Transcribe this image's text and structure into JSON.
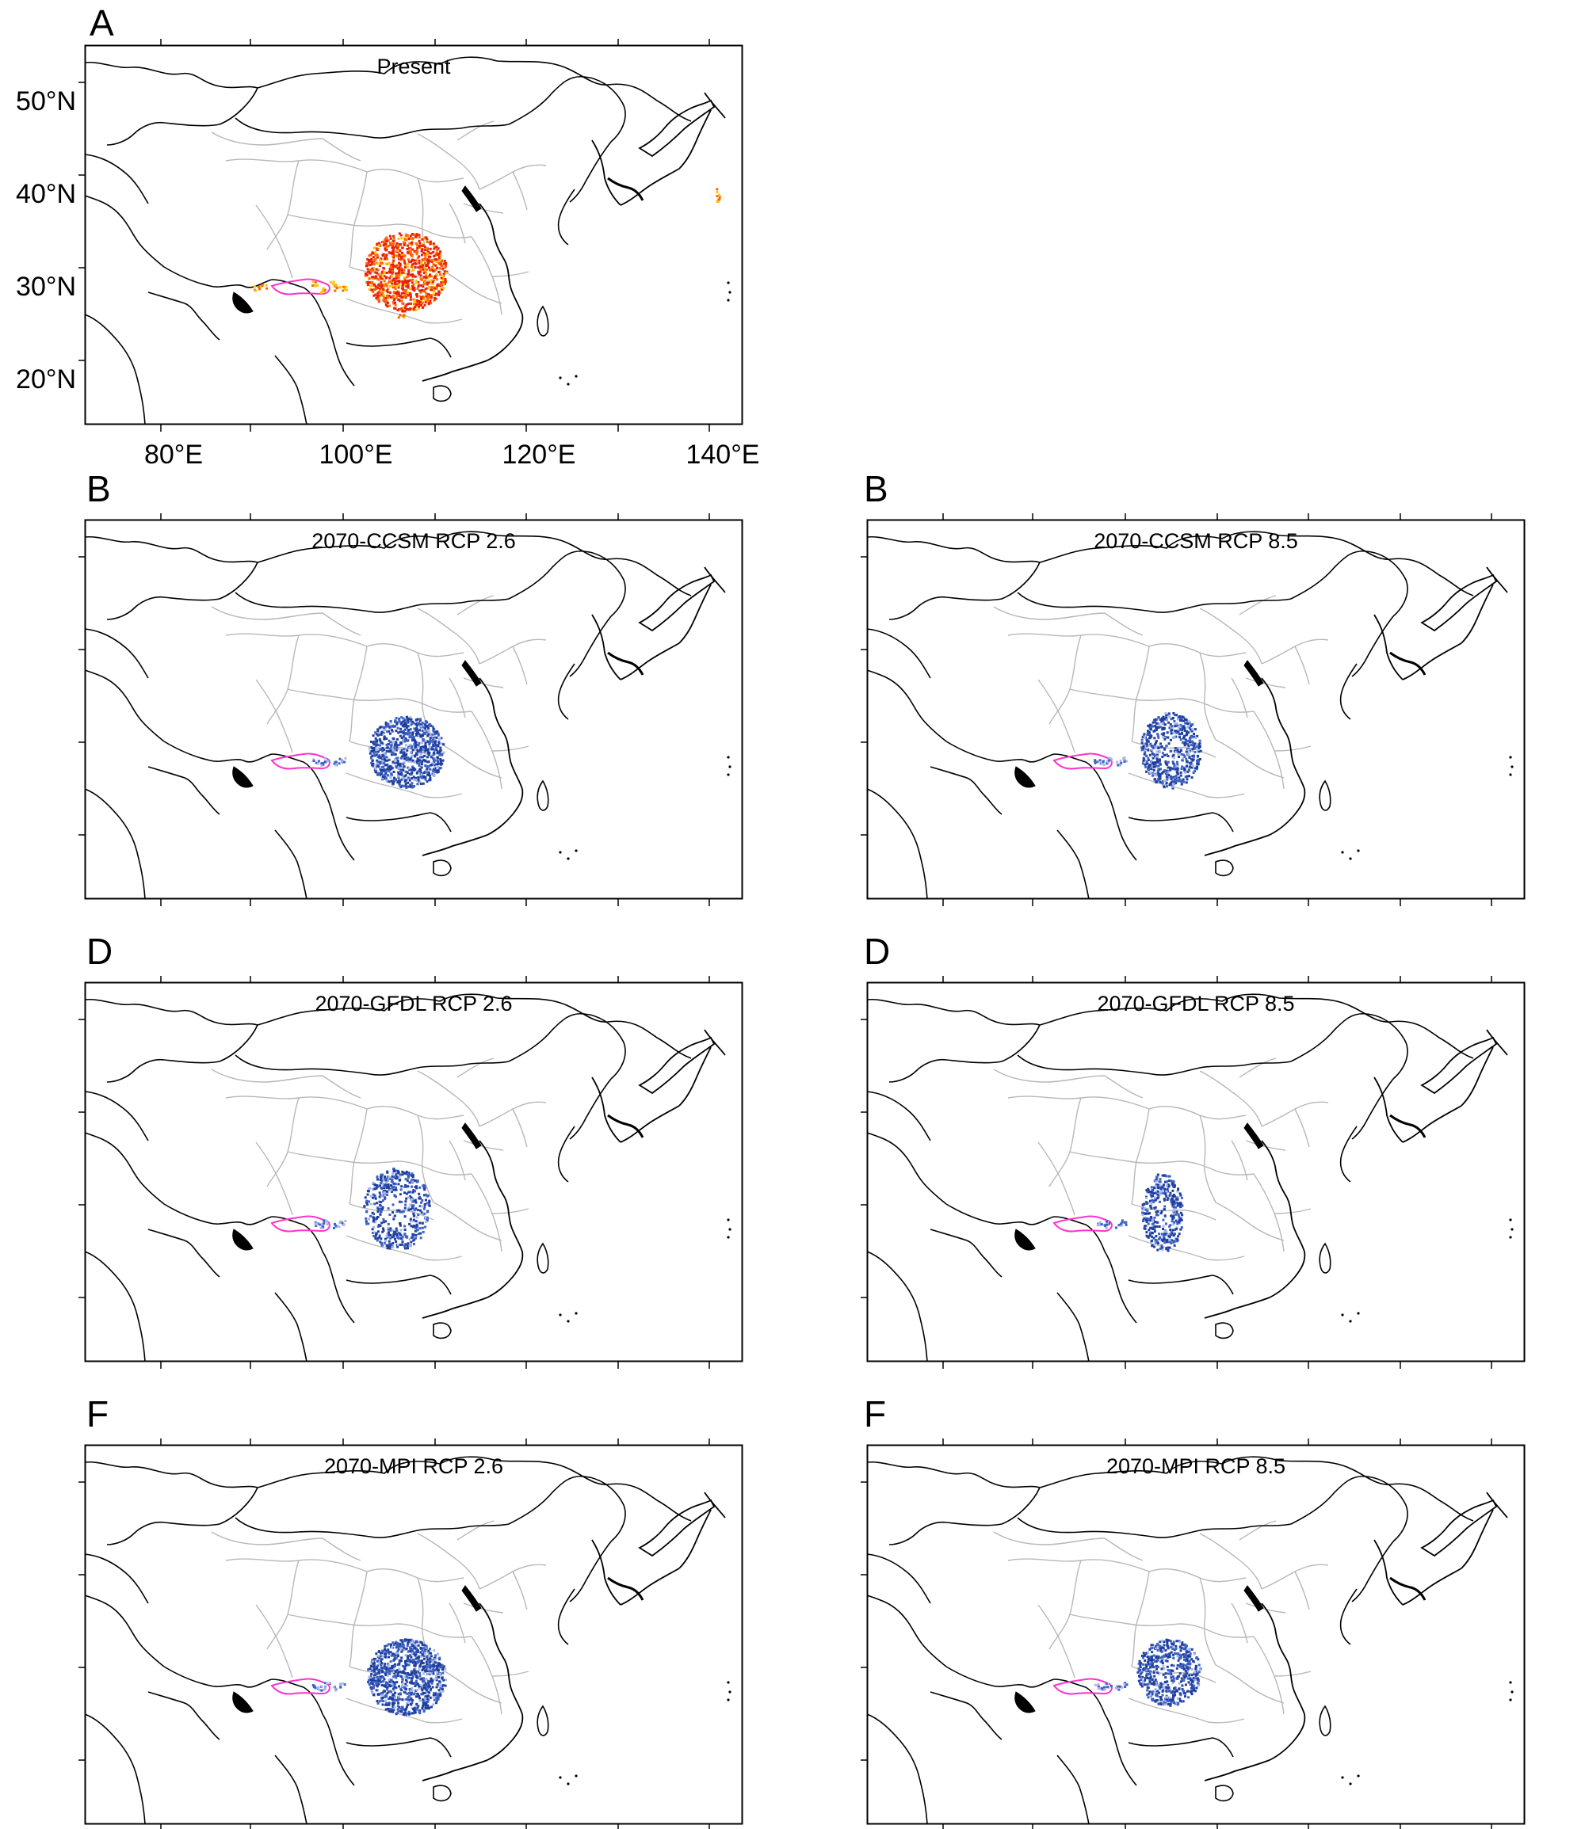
{
  "figure": {
    "panels": [
      {
        "letter": "A",
        "title": "Present",
        "scheme": "present"
      },
      {
        "letter": "B",
        "title": "2070-CCSM RCP 2.6",
        "scheme": "ccsm26"
      },
      {
        "letter": "B",
        "title": "2070-CCSM RCP 8.5",
        "scheme": "ccsm85"
      },
      {
        "letter": "D",
        "title": "2070-GFDL RCP 2.6",
        "scheme": "gfdl26"
      },
      {
        "letter": "D",
        "title": "2070-GFDL RCP 8.5",
        "scheme": "gfdl85"
      },
      {
        "letter": "F",
        "title": "2070-MPI RCP 2.6",
        "scheme": "mpi26"
      },
      {
        "letter": "F",
        "title": "2070-MPI RCP 8.5",
        "scheme": "mpi85"
      }
    ],
    "latitude_labels": [
      "50°N",
      "40°N",
      "30°N",
      "20°N"
    ],
    "longitude_labels": [
      "80°E",
      "100°E",
      "120°E",
      "140°E"
    ]
  },
  "colors": {
    "country_border": "#000000",
    "province_border": "#b8b8b8",
    "range_outline": "#ff33cc",
    "present_high": "#e8200c",
    "present_mid": "#ff6a00",
    "present_low": "#ffc400",
    "future_high": "#1f3f9f",
    "future_mid": "#3f63c4",
    "future_low": "#a9b8ea"
  }
}
